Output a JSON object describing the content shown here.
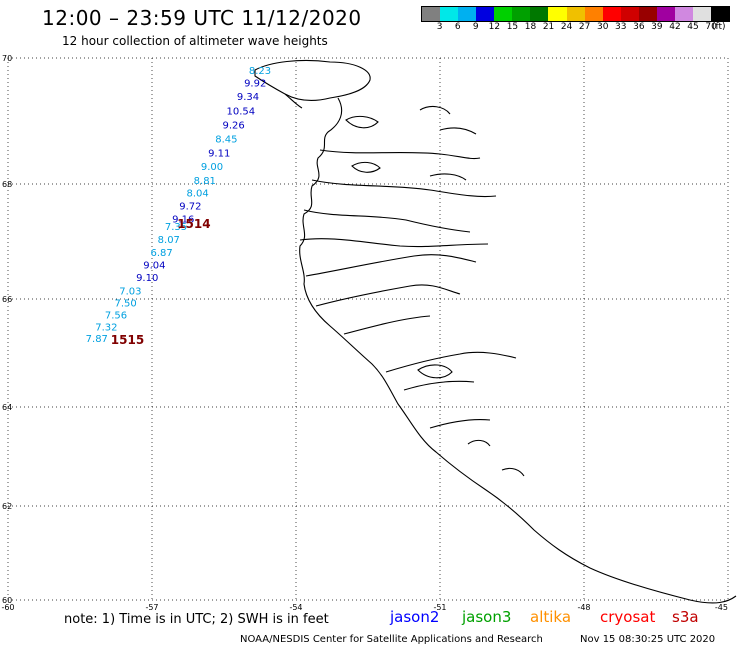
{
  "header": {
    "title": "12:00 – 23:59 UTC 11/12/2020",
    "subtitle": "12 hour collection of altimeter wave heights"
  },
  "legend": {
    "colors": [
      "#808080",
      "#00e8e8",
      "#00b0f0",
      "#0000e0",
      "#00d000",
      "#00a000",
      "#007800",
      "#ffff00",
      "#f0c000",
      "#ff8000",
      "#ff0000",
      "#d00000",
      "#980000",
      "#a000a0",
      "#d088e0",
      "#e0e0e0",
      "#000000"
    ],
    "labels": [
      "3",
      "6",
      "9",
      "12",
      "15",
      "18",
      "21",
      "24",
      "27",
      "30",
      "33",
      "36",
      "39",
      "42",
      "45",
      "70"
    ],
    "unit": "(ft)"
  },
  "map": {
    "lat_labels": [
      "70",
      "68",
      "66",
      "64",
      "62",
      "60"
    ],
    "lon_labels": [
      "-60",
      "-57",
      "-54",
      "-51",
      "-48",
      "-45"
    ],
    "track_north": {
      "label": "1514",
      "points": [
        {
          "v": "8.23",
          "c": "#00a0e0",
          "lat": 69.75,
          "lon": -54.75
        },
        {
          "v": "9.92",
          "c": "#0000c0",
          "lat": 69.55,
          "lon": -54.85
        },
        {
          "v": "9.34",
          "c": "#0000c0",
          "lat": 69.33,
          "lon": -55.0
        },
        {
          "v": "10.54",
          "c": "#0000c0",
          "lat": 69.1,
          "lon": -55.15
        },
        {
          "v": "9.26",
          "c": "#0000c0",
          "lat": 68.88,
          "lon": -55.3
        },
        {
          "v": "8.45",
          "c": "#00a0e0",
          "lat": 68.66,
          "lon": -55.45
        },
        {
          "v": "9.11",
          "c": "#0000c0",
          "lat": 68.44,
          "lon": -55.6
        },
        {
          "v": "9.00",
          "c": "#00a0e0",
          "lat": 68.22,
          "lon": -55.75
        },
        {
          "v": "8.81",
          "c": "#00a0e0",
          "lat": 68.0,
          "lon": -55.9
        },
        {
          "v": "8.04",
          "c": "#00a0e0",
          "lat": 67.78,
          "lon": -56.05
        },
        {
          "v": "9.72",
          "c": "#0000c0",
          "lat": 67.56,
          "lon": -56.2
        },
        {
          "v": "9.16",
          "c": "#0000c0",
          "lat": 67.33,
          "lon": -56.35
        },
        {
          "v": "7.35",
          "c": "#00a0e0",
          "lat": 67.2,
          "lon": -56.5
        },
        {
          "v": "8.07",
          "c": "#00a0e0",
          "lat": 66.97,
          "lon": -56.65
        },
        {
          "v": "6.87",
          "c": "#00a0e0",
          "lat": 66.75,
          "lon": -56.8
        },
        {
          "v": "9.04",
          "c": "#0000c0",
          "lat": 66.53,
          "lon": -56.95
        },
        {
          "v": "9.10",
          "c": "#0000c0",
          "lat": 66.31,
          "lon": -57.1
        }
      ]
    },
    "track_south": {
      "label": "1515",
      "points": [
        {
          "v": "7.03",
          "c": "#00a0e0",
          "lat": 66.08,
          "lon": -57.45
        },
        {
          "v": "7.50",
          "c": "#00a0e0",
          "lat": 65.86,
          "lon": -57.55
        },
        {
          "v": "7.56",
          "c": "#00a0e0",
          "lat": 65.64,
          "lon": -57.75
        },
        {
          "v": "7.32",
          "c": "#00a0e0",
          "lat": 65.42,
          "lon": -57.95
        },
        {
          "v": "7.87",
          "c": "#00a0e0",
          "lat": 65.2,
          "lon": -58.15
        }
      ]
    }
  },
  "footer": {
    "note": "note:  1) Time is in UTC;  2) SWH is in feet",
    "satellites": [
      {
        "name": "jason2",
        "color": "#0000ff"
      },
      {
        "name": "jason3",
        "color": "#00a000"
      },
      {
        "name": "altika",
        "color": "#ff9000"
      },
      {
        "name": "cryosat",
        "color": "#ff0000"
      },
      {
        "name": "s3a",
        "color": "#c00000"
      }
    ],
    "credit": "NOAA/NESDIS Center for Satellite Applications and Research",
    "timestamp": "Nov 15 08:30:25 UTC 2020"
  }
}
